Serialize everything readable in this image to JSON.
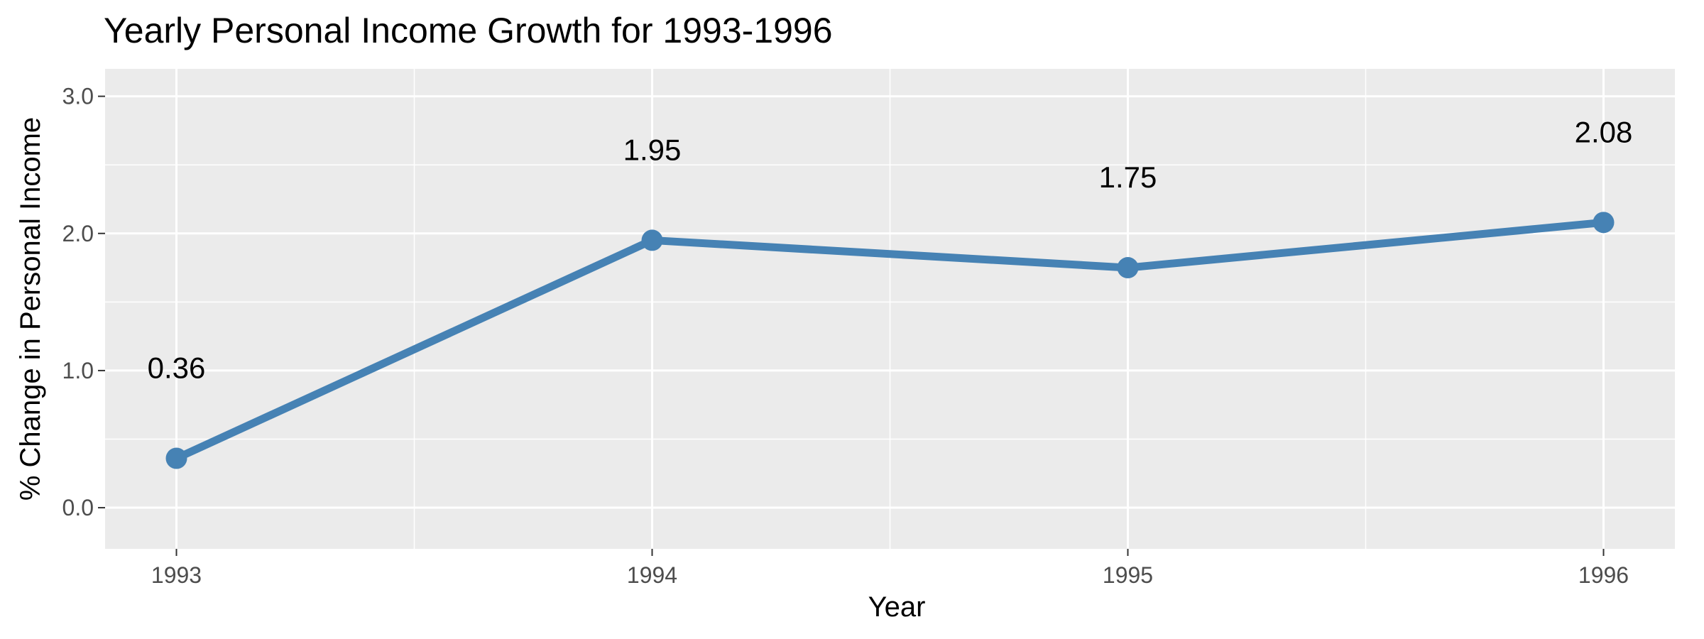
{
  "chart_data": {
    "type": "line",
    "title": "Yearly Personal Income Growth for 1993-1996",
    "xlabel": "Year",
    "ylabel": "% Change in Personal Income",
    "x": [
      "1993",
      "1994",
      "1995",
      "1996"
    ],
    "series": [
      {
        "values": [
          0.36,
          1.95,
          1.75,
          2.08
        ],
        "labels": [
          "0.36",
          "1.95",
          "1.75",
          "2.08"
        ]
      }
    ],
    "ylim": [
      -0.3,
      3.2
    ],
    "yticks": [
      0.0,
      1.0,
      2.0,
      3.0
    ],
    "ytick_labels": [
      "0.0",
      "1.0",
      "2.0",
      "3.0"
    ],
    "grid": true,
    "legend": "none",
    "colors": {
      "line": "#4682b4",
      "panel_background": "#ebebeb",
      "grid": "#ffffff"
    }
  }
}
